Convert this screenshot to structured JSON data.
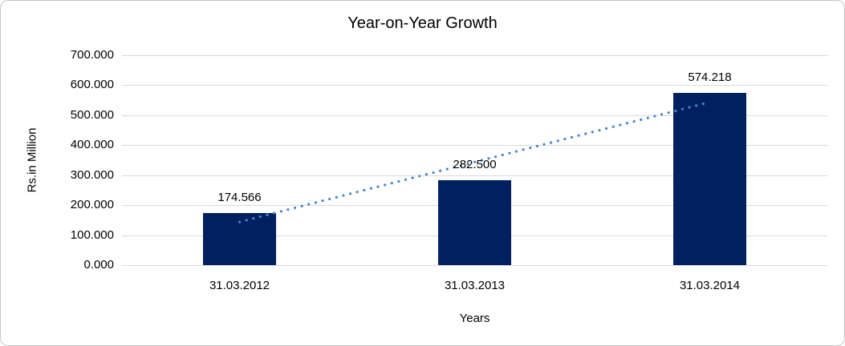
{
  "chart_data": {
    "type": "bar",
    "title": "Year-on-Year Growth",
    "xlabel": "Years",
    "ylabel": "Rs.in Million",
    "categories": [
      "31.03.2012",
      "31.03.2013",
      "31.03.2014"
    ],
    "values": [
      174.566,
      282.5,
      574.218
    ],
    "data_labels": [
      "174.566",
      "282.500",
      "574.218"
    ],
    "ylim": [
      0,
      700
    ],
    "ytick_step": 100,
    "ytick_labels": [
      "0.000",
      "100.000",
      "200.000",
      "300.000",
      "400.000",
      "500.000",
      "600.000",
      "700.000"
    ],
    "grid": true,
    "legend_position": "none",
    "trendline": {
      "type": "linear",
      "style": "dotted"
    },
    "colors": {
      "bar": "#002060",
      "trendline": "#4a86c8",
      "gridline": "#d9d9d9",
      "frame_border": "#c6c6c6",
      "text": "#000000",
      "background": "#ffffff"
    }
  }
}
